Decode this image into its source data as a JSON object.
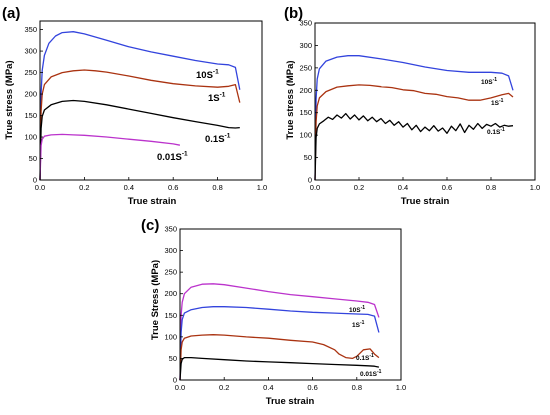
{
  "chart_data": [
    {
      "panel": "(a)",
      "type": "line",
      "xlabel": "True strain",
      "ylabel": "True stress (MPa)",
      "xlim": [
        0,
        1.0
      ],
      "ylim": [
        0,
        370
      ],
      "xticks": [
        "0.0",
        "0.2",
        "0.4",
        "0.6",
        "0.8",
        "1.0"
      ],
      "yticks": [
        "0",
        "50",
        "100",
        "150",
        "200",
        "250",
        "300",
        "350"
      ],
      "grid": false,
      "series": [
        {
          "label": "10S",
          "sup": "-1",
          "color": "#3344dd",
          "x": [
            0,
            0.005,
            0.01,
            0.02,
            0.04,
            0.07,
            0.1,
            0.15,
            0.2,
            0.3,
            0.4,
            0.5,
            0.6,
            0.7,
            0.8,
            0.85,
            0.88,
            0.9
          ],
          "y": [
            0,
            200,
            255,
            290,
            318,
            335,
            343,
            345,
            340,
            325,
            310,
            298,
            288,
            278,
            270,
            268,
            262,
            210
          ]
        },
        {
          "label": "1S",
          "sup": "-1",
          "color": "#aa3311",
          "x": [
            0,
            0.005,
            0.01,
            0.02,
            0.05,
            0.1,
            0.15,
            0.2,
            0.25,
            0.3,
            0.4,
            0.5,
            0.6,
            0.7,
            0.8,
            0.85,
            0.88,
            0.9
          ],
          "y": [
            0,
            160,
            200,
            222,
            240,
            250,
            254,
            256,
            254,
            251,
            242,
            232,
            224,
            219,
            216,
            218,
            222,
            180
          ]
        },
        {
          "label": "0.1S",
          "sup": "-1",
          "color": "#000000",
          "x": [
            0,
            0.005,
            0.01,
            0.02,
            0.05,
            0.1,
            0.15,
            0.2,
            0.3,
            0.4,
            0.5,
            0.6,
            0.7,
            0.8,
            0.85,
            0.88,
            0.9
          ],
          "y": [
            0,
            120,
            148,
            163,
            175,
            183,
            185,
            183,
            175,
            165,
            155,
            145,
            136,
            127,
            122,
            121,
            122
          ]
        },
        {
          "label": "0.01S",
          "sup": "-1",
          "color": "#bb33cc",
          "x": [
            0,
            0.005,
            0.01,
            0.02,
            0.05,
            0.1,
            0.15,
            0.2,
            0.3,
            0.4,
            0.5,
            0.6,
            0.63
          ],
          "y": [
            0,
            80,
            95,
            102,
            105,
            106,
            105,
            104,
            100,
            95,
            90,
            84,
            81
          ]
        }
      ]
    },
    {
      "panel": "(b)",
      "type": "line",
      "xlabel": "True strain",
      "ylabel": "True stress (MPa)",
      "xlim": [
        0,
        1.0
      ],
      "ylim": [
        0,
        350
      ],
      "xticks": [
        "0.0",
        "0.2",
        "0.4",
        "0.6",
        "0.8",
        "1.0"
      ],
      "yticks": [
        "0",
        "50",
        "100",
        "150",
        "200",
        "250",
        "300",
        "350"
      ],
      "grid": false,
      "series": [
        {
          "label": "10S",
          "sup": "-1",
          "color": "#3344dd",
          "x": [
            0,
            0.005,
            0.01,
            0.02,
            0.05,
            0.1,
            0.15,
            0.2,
            0.3,
            0.4,
            0.5,
            0.6,
            0.7,
            0.8,
            0.85,
            0.88,
            0.9
          ],
          "y": [
            0,
            180,
            225,
            248,
            265,
            274,
            277,
            277,
            270,
            262,
            252,
            244,
            240,
            240,
            238,
            232,
            200
          ]
        },
        {
          "label": "1S",
          "sup": "-1",
          "color": "#aa3311",
          "x": [
            0,
            0.005,
            0.01,
            0.02,
            0.05,
            0.1,
            0.15,
            0.2,
            0.25,
            0.3,
            0.35,
            0.4,
            0.45,
            0.5,
            0.55,
            0.6,
            0.65,
            0.7,
            0.75,
            0.8,
            0.85,
            0.88,
            0.9
          ],
          "y": [
            0,
            130,
            165,
            183,
            197,
            207,
            210,
            212,
            211,
            208,
            206,
            201,
            199,
            193,
            191,
            186,
            183,
            178,
            178,
            183,
            190,
            193,
            185
          ]
        },
        {
          "label": "0.1S",
          "sup": "-1",
          "color": "#000000",
          "x": [
            0,
            0.005,
            0.01,
            0.02,
            0.04,
            0.06,
            0.08,
            0.1,
            0.12,
            0.14,
            0.16,
            0.18,
            0.2,
            0.22,
            0.24,
            0.26,
            0.28,
            0.3,
            0.32,
            0.34,
            0.36,
            0.38,
            0.4,
            0.42,
            0.44,
            0.46,
            0.48,
            0.5,
            0.52,
            0.54,
            0.56,
            0.58,
            0.6,
            0.62,
            0.64,
            0.66,
            0.68,
            0.7,
            0.72,
            0.74,
            0.76,
            0.78,
            0.8,
            0.82,
            0.84,
            0.86,
            0.88,
            0.9
          ],
          "y": [
            0,
            95,
            115,
            125,
            132,
            140,
            135,
            145,
            138,
            148,
            136,
            145,
            134,
            143,
            132,
            140,
            130,
            137,
            126,
            133,
            122,
            130,
            118,
            126,
            112,
            122,
            108,
            118,
            110,
            121,
            109,
            116,
            104,
            120,
            110,
            125,
            106,
            122,
            113,
            126,
            115,
            124,
            120,
            126,
            118,
            122,
            120,
            121
          ]
        }
      ]
    },
    {
      "panel": "(c)",
      "type": "line",
      "xlabel": "True strain",
      "ylabel": "True Stress (MPa)",
      "xlim": [
        0,
        1.0
      ],
      "ylim": [
        0,
        350
      ],
      "xticks": [
        "0.0",
        "0.2",
        "0.4",
        "0.6",
        "0.8",
        "1.0"
      ],
      "yticks": [
        "0",
        "50",
        "100",
        "150",
        "200",
        "250",
        "300",
        "350"
      ],
      "grid": false,
      "series": [
        {
          "label": "10S",
          "sup": "-1",
          "color": "#bb33cc",
          "x": [
            0,
            0.005,
            0.01,
            0.02,
            0.05,
            0.1,
            0.15,
            0.2,
            0.3,
            0.4,
            0.5,
            0.6,
            0.7,
            0.8,
            0.85,
            0.88,
            0.9
          ],
          "y": [
            0,
            150,
            180,
            200,
            215,
            222,
            223,
            221,
            213,
            205,
            198,
            193,
            188,
            183,
            180,
            175,
            145
          ]
        },
        {
          "label": "1S",
          "sup": "-1",
          "color": "#3344dd",
          "x": [
            0,
            0.005,
            0.01,
            0.02,
            0.05,
            0.1,
            0.15,
            0.2,
            0.3,
            0.4,
            0.5,
            0.6,
            0.7,
            0.8,
            0.85,
            0.88,
            0.9
          ],
          "y": [
            0,
            110,
            140,
            155,
            163,
            168,
            170,
            170,
            168,
            164,
            160,
            157,
            155,
            153,
            152,
            148,
            110
          ]
        },
        {
          "label": "0.1S",
          "sup": "-1",
          "color": "#aa3311",
          "x": [
            0,
            0.005,
            0.01,
            0.02,
            0.05,
            0.1,
            0.15,
            0.2,
            0.3,
            0.4,
            0.5,
            0.6,
            0.65,
            0.7,
            0.72,
            0.75,
            0.78,
            0.8,
            0.83,
            0.86,
            0.88,
            0.9
          ],
          "y": [
            0,
            70,
            88,
            97,
            102,
            104,
            105,
            104,
            100,
            97,
            92,
            88,
            82,
            70,
            60,
            52,
            50,
            55,
            70,
            72,
            60,
            52
          ]
        },
        {
          "label": "0.01S",
          "sup": "-1",
          "color": "#000000",
          "x": [
            0,
            0.005,
            0.01,
            0.02,
            0.05,
            0.1,
            0.2,
            0.3,
            0.4,
            0.5,
            0.6,
            0.7,
            0.8,
            0.85,
            0.88,
            0.9
          ],
          "y": [
            0,
            38,
            48,
            52,
            52,
            50,
            47,
            44,
            42,
            40,
            38,
            36,
            34,
            33,
            32,
            30
          ]
        }
      ]
    }
  ]
}
